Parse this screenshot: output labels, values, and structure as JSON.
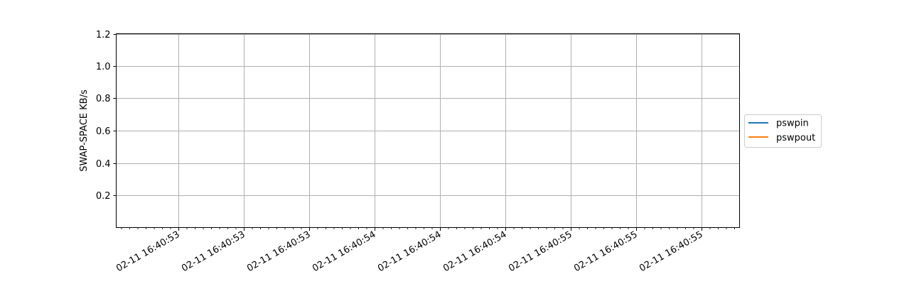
{
  "chart_data": {
    "type": "line",
    "title": "",
    "xlabel": "",
    "ylabel": "SWAP-SPACE KB/s",
    "ylim": [
      0,
      1.2
    ],
    "yticks": [
      0.2,
      0.4,
      0.6,
      0.8,
      1.0,
      1.2
    ],
    "ytick_labels": [
      "0.2",
      "0.4",
      "0.6",
      "0.8",
      "1.0",
      "1.2"
    ],
    "xtick_labels": [
      "02-11 16:40:53",
      "02-11 16:40:53",
      "02-11 16:40:53",
      "02-11 16:40:54",
      "02-11 16:40:54",
      "02-11 16:40:54",
      "02-11 16:40:55",
      "02-11 16:40:55",
      "02-11 16:40:55"
    ],
    "grid": true,
    "legend_position": "right",
    "series": [
      {
        "name": "pswpin",
        "color": "#1f77b4",
        "values": []
      },
      {
        "name": "pswpout",
        "color": "#ff7f0e",
        "values": []
      }
    ]
  }
}
